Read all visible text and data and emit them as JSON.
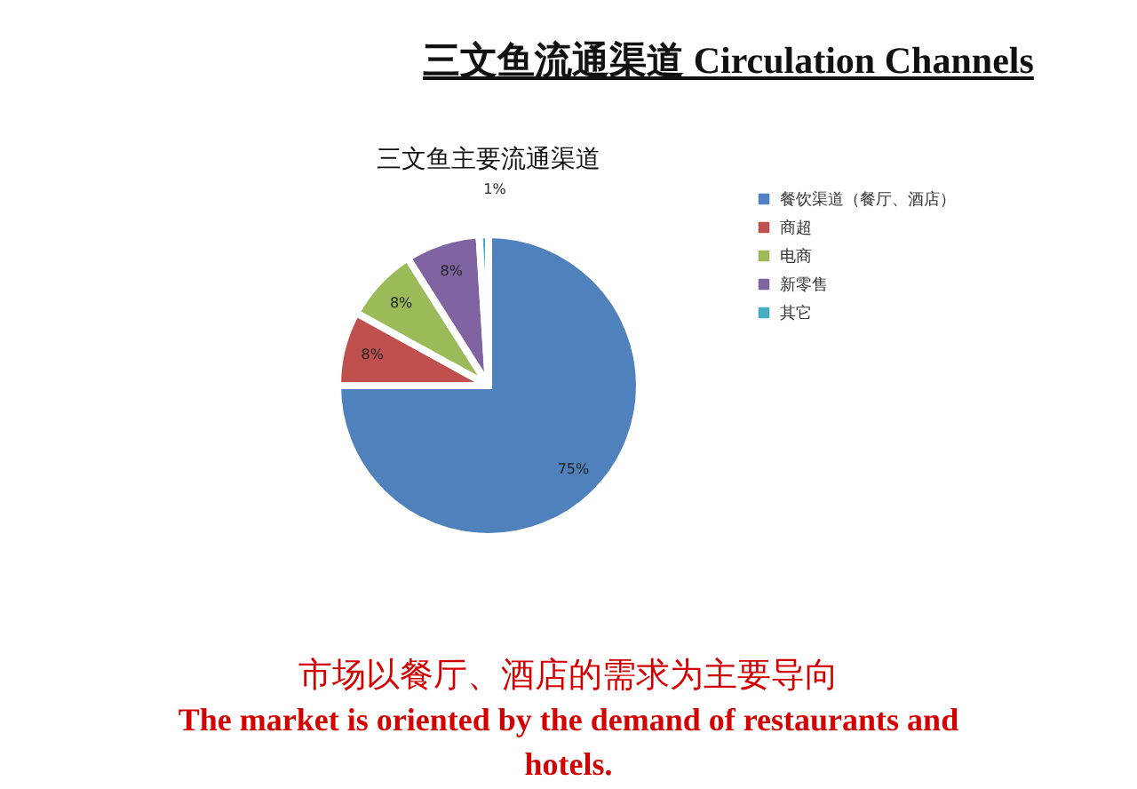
{
  "chart_data": {
    "type": "pie",
    "title": "三文鱼流通渠道 Circulation Channels",
    "subtitle": "三文鱼主要流通渠道",
    "categories": [
      "餐饮渠道（餐厅、酒店）",
      "商超",
      "电商",
      "新零售",
      "其它"
    ],
    "values": [
      75,
      8,
      8,
      8,
      1
    ],
    "colors": [
      "#4f81bd",
      "#c0504d",
      "#9bbb59",
      "#8064a2",
      "#4bacc6"
    ],
    "value_labels": [
      "75%",
      "8%",
      "8%",
      "8%",
      "1%"
    ],
    "legend": "right",
    "annotations": [
      "市场以餐厅、酒店的需求为主要导向",
      "The market is oriented by the demand of restaurants and hotels."
    ]
  }
}
